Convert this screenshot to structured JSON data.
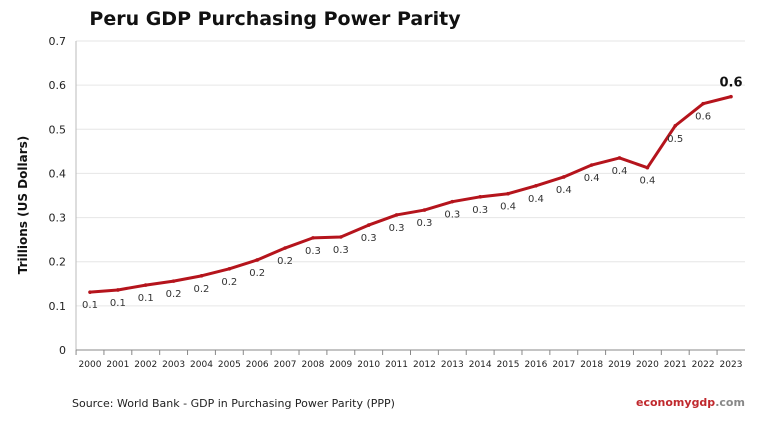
{
  "chart_data": {
    "type": "line",
    "title": "Peru GDP Purchasing Power Parity",
    "ylabel": "Trillions (US Dollars)",
    "xlabel": "",
    "ylim": [
      0,
      0.7
    ],
    "yticks": [
      "0",
      "0.1",
      "0.2",
      "0.3",
      "0.4",
      "0.5",
      "0.6",
      "0.7"
    ],
    "grid": true,
    "categories": [
      "2000",
      "2001",
      "2002",
      "2003",
      "2004",
      "2005",
      "2006",
      "2007",
      "2008",
      "2009",
      "2010",
      "2011",
      "2012",
      "2013",
      "2014",
      "2015",
      "2016",
      "2017",
      "2018",
      "2019",
      "2020",
      "2021",
      "2022",
      "2023"
    ],
    "values": [
      0.131,
      0.136,
      0.147,
      0.156,
      0.168,
      0.184,
      0.204,
      0.231,
      0.254,
      0.256,
      0.283,
      0.306,
      0.317,
      0.336,
      0.347,
      0.354,
      0.372,
      0.392,
      0.419,
      0.435,
      0.413,
      0.508,
      0.558,
      0.574
    ],
    "data_labels": [
      "0.1",
      "0.1",
      "0.1",
      "0.2",
      "0.2",
      "0.2",
      "0.2",
      "0.2",
      "0.3",
      "0.3",
      "0.3",
      "0.3",
      "0.3",
      "0.3",
      "0.3",
      "0.4",
      "0.4",
      "0.4",
      "0.4",
      "0.4",
      "0.4",
      "0.5",
      "0.6",
      "0.6"
    ],
    "line_color": "#b5141c"
  },
  "source": "Source:  World Bank -  GDP  in Purchasing Power Parity (PPP)",
  "logo": {
    "part1": "economy",
    "part2": "gdp",
    "part3": ".com"
  }
}
